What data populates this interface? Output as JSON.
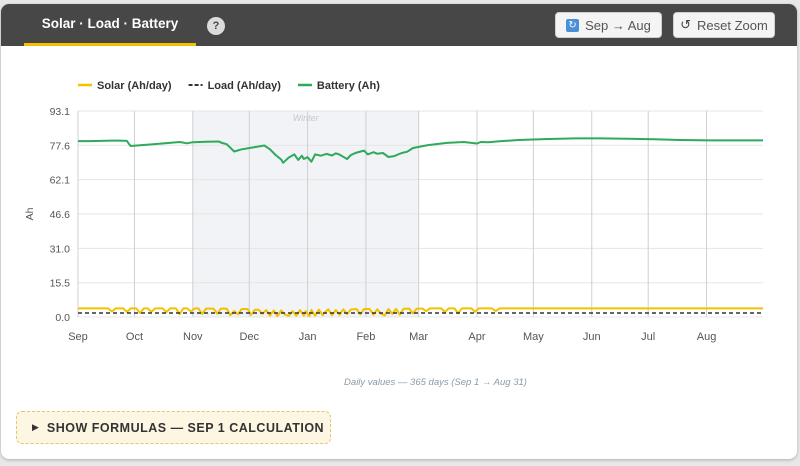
{
  "header": {
    "tab_label": "Solar · Load · Battery",
    "help_label": "?",
    "sync_label": "Sep → Aug",
    "reset_label": "Reset Zoom",
    "sync_icon_glyph": "↻",
    "reset_icon_glyph": "↺"
  },
  "chart_data": {
    "type": "line",
    "x_axis": {
      "ticks": [
        "Sep",
        "Oct",
        "Nov",
        "Dec",
        "Jan",
        "Feb",
        "Mar",
        "Apr",
        "May",
        "Jun",
        "Jul",
        "Aug"
      ],
      "range": [
        "Sep 1",
        "Aug 31"
      ],
      "days": 365
    },
    "y_axis": {
      "label": "Ah",
      "ticks": [
        "0.0",
        "15.5",
        "31.0",
        "46.6",
        "62.1",
        "77.6",
        "93.1"
      ],
      "ylim": [
        0,
        93.1
      ]
    },
    "band": {
      "label": "Winter",
      "from": "Nov",
      "to": "Mar",
      "color": "#f1f3f6"
    },
    "grid": true,
    "legend_position": "top-left",
    "legend": [
      {
        "name": "Solar (Ah/day)",
        "color": "#f2c200",
        "style": "solid"
      },
      {
        "name": "Load (Ah/day)",
        "color": "#333333",
        "style": "dashed"
      },
      {
        "name": "Battery (Ah)",
        "color": "#2eaa5c",
        "style": "solid"
      }
    ],
    "series": [
      {
        "name": "Battery (Ah)",
        "color": "#2eaa5c",
        "points": [
          [
            0,
            79.5
          ],
          [
            6,
            79.5
          ],
          [
            12,
            79.6
          ],
          [
            18,
            79.7
          ],
          [
            22,
            79.7
          ],
          [
            26,
            79.6
          ],
          [
            27,
            78.3
          ],
          [
            28,
            77.3
          ],
          [
            33,
            77.6
          ],
          [
            40,
            78.1
          ],
          [
            47,
            78.6
          ],
          [
            54,
            79.1
          ],
          [
            58,
            78.5
          ],
          [
            61,
            79.0
          ],
          [
            68,
            79.2
          ],
          [
            75,
            79.3
          ],
          [
            76,
            78.8
          ],
          [
            79,
            78.1
          ],
          [
            83,
            74.8
          ],
          [
            87,
            75.8
          ],
          [
            94,
            76.8
          ],
          [
            99,
            77.5
          ],
          [
            102,
            75.8
          ],
          [
            105,
            73.2
          ],
          [
            108,
            71.2
          ],
          [
            109,
            69.7
          ],
          [
            112,
            72.1
          ],
          [
            115,
            73.5
          ],
          [
            117,
            71.0
          ],
          [
            119,
            72.9
          ],
          [
            120,
            71.4
          ],
          [
            122,
            72.2
          ],
          [
            124,
            70.2
          ],
          [
            126,
            73.5
          ],
          [
            129,
            72.9
          ],
          [
            132,
            73.7
          ],
          [
            135,
            73.0
          ],
          [
            137,
            74.0
          ],
          [
            139,
            73.4
          ],
          [
            141,
            72.4
          ],
          [
            143,
            71.4
          ],
          [
            145,
            73.2
          ],
          [
            148,
            74.3
          ],
          [
            152,
            75.2
          ],
          [
            154,
            73.5
          ],
          [
            157,
            74.5
          ],
          [
            159,
            73.8
          ],
          [
            162,
            74.1
          ],
          [
            165,
            72.3
          ],
          [
            168,
            72.7
          ],
          [
            172,
            74.1
          ],
          [
            175,
            74.7
          ],
          [
            178,
            76.4
          ],
          [
            186,
            77.7
          ],
          [
            196,
            78.7
          ],
          [
            205,
            79.1
          ],
          [
            212,
            78.4
          ],
          [
            214,
            79.1
          ],
          [
            218,
            79.0
          ],
          [
            224,
            79.4
          ],
          [
            234,
            80.0
          ],
          [
            248,
            80.4
          ],
          [
            264,
            80.7
          ],
          [
            278,
            80.7
          ],
          [
            292,
            80.6
          ],
          [
            306,
            80.3
          ],
          [
            320,
            80.0
          ],
          [
            336,
            79.8
          ],
          [
            352,
            79.8
          ],
          [
            364,
            79.8
          ]
        ]
      },
      {
        "name": "Solar (Ah/day)",
        "color": "#f2c200",
        "points": [
          [
            0,
            3.9
          ],
          [
            6,
            3.9
          ],
          [
            12,
            3.9
          ],
          [
            16,
            3.9
          ],
          [
            18,
            2.5
          ],
          [
            20,
            3.9
          ],
          [
            24,
            3.9
          ],
          [
            26,
            2.3
          ],
          [
            28,
            3.9
          ],
          [
            31,
            3.9
          ],
          [
            33,
            1.8
          ],
          [
            35,
            3.9
          ],
          [
            37,
            3.9
          ],
          [
            39,
            2.4
          ],
          [
            41,
            3.9
          ],
          [
            45,
            3.9
          ],
          [
            47,
            2.2
          ],
          [
            49,
            3.9
          ],
          [
            52,
            3.9
          ],
          [
            54,
            1.3
          ],
          [
            56,
            3.9
          ],
          [
            58,
            3.9
          ],
          [
            60,
            2.5
          ],
          [
            62,
            3.9
          ],
          [
            64,
            3.9
          ],
          [
            66,
            1.4
          ],
          [
            68,
            3.8
          ],
          [
            72,
            3.8
          ],
          [
            74,
            1.5
          ],
          [
            76,
            3.8
          ],
          [
            79,
            3.8
          ],
          [
            81,
            0.8
          ],
          [
            83,
            2.7
          ],
          [
            85,
            1.2
          ],
          [
            87,
            3.6
          ],
          [
            90,
            3.6
          ],
          [
            92,
            1.0
          ],
          [
            94,
            3.3
          ],
          [
            96,
            3.3
          ],
          [
            98,
            1.4
          ],
          [
            100,
            3.1
          ],
          [
            102,
            0.6
          ],
          [
            104,
            3.0
          ],
          [
            106,
            0.4
          ],
          [
            108,
            3.0
          ],
          [
            110,
            1.1
          ],
          [
            112,
            0.5
          ],
          [
            114,
            2.6
          ],
          [
            116,
            0.6
          ],
          [
            118,
            3.1
          ],
          [
            120,
            0.6
          ],
          [
            121,
            2.6
          ],
          [
            123,
            0.4
          ],
          [
            124,
            3.2
          ],
          [
            126,
            0.6
          ],
          [
            128,
            3.3
          ],
          [
            130,
            0.8
          ],
          [
            131,
            2.0
          ],
          [
            133,
            3.5
          ],
          [
            135,
            0.8
          ],
          [
            137,
            3.1
          ],
          [
            139,
            1.0
          ],
          [
            141,
            3.5
          ],
          [
            143,
            1.3
          ],
          [
            145,
            3.4
          ],
          [
            148,
            3.6
          ],
          [
            150,
            1.2
          ],
          [
            152,
            3.6
          ],
          [
            155,
            3.6
          ],
          [
            157,
            1.0
          ],
          [
            159,
            3.5
          ],
          [
            161,
            1.5
          ],
          [
            163,
            0.7
          ],
          [
            165,
            3.6
          ],
          [
            167,
            1.4
          ],
          [
            169,
            3.7
          ],
          [
            171,
            1.1
          ],
          [
            173,
            3.7
          ],
          [
            176,
            3.8
          ],
          [
            178,
            1.6
          ],
          [
            180,
            3.8
          ],
          [
            183,
            3.8
          ],
          [
            185,
            2.6
          ],
          [
            187,
            3.9
          ],
          [
            190,
            3.9
          ],
          [
            193,
            3.9
          ],
          [
            195,
            2.2
          ],
          [
            197,
            3.9
          ],
          [
            200,
            3.9
          ],
          [
            202,
            1.7
          ],
          [
            204,
            3.9
          ],
          [
            209,
            3.9
          ],
          [
            211,
            2.4
          ],
          [
            213,
            3.9
          ],
          [
            220,
            3.9
          ],
          [
            222,
            2.7
          ],
          [
            224,
            3.9
          ],
          [
            232,
            3.9
          ],
          [
            240,
            3.9
          ],
          [
            250,
            3.9
          ],
          [
            260,
            3.9
          ],
          [
            270,
            3.9
          ],
          [
            280,
            3.9
          ],
          [
            290,
            3.9
          ],
          [
            300,
            3.9
          ],
          [
            310,
            3.9
          ],
          [
            320,
            3.9
          ],
          [
            330,
            3.9
          ],
          [
            340,
            3.9
          ],
          [
            350,
            3.9
          ],
          [
            364,
            3.9
          ]
        ]
      },
      {
        "name": "Load (Ah/day)",
        "color": "#333333",
        "dashed": true,
        "points": [
          [
            0,
            1.8
          ],
          [
            364,
            1.8
          ]
        ]
      }
    ]
  },
  "footer": {
    "caption": "Daily values — 365 days (Sep 1 → Aug 31)",
    "formula_icon_glyph": "▶",
    "formula_label": "SHOW FORMULAS — SEP 1 CALCULATION"
  }
}
